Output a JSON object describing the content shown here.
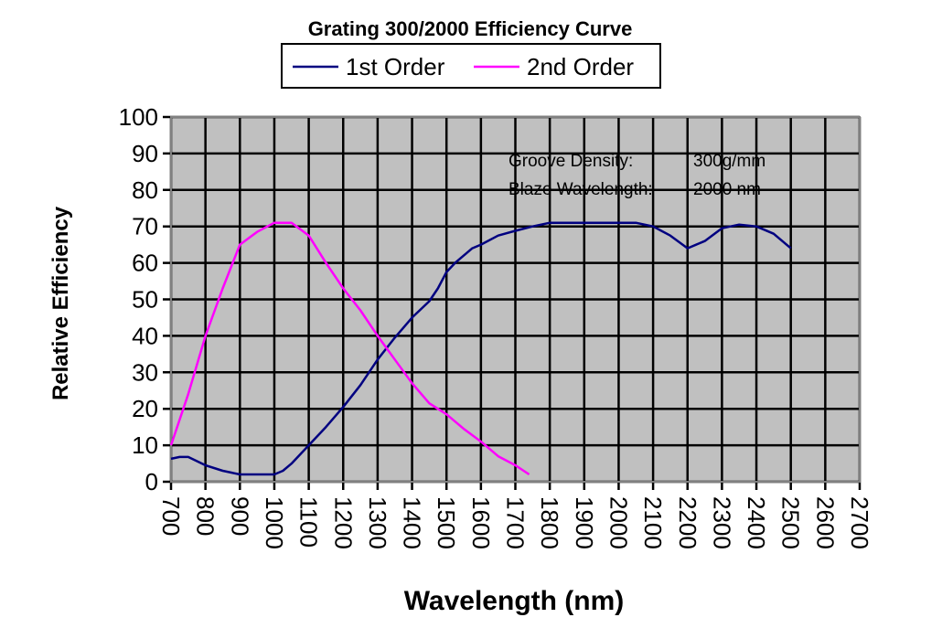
{
  "chart_data": {
    "type": "line",
    "title": "Grating 300/2000 Efficiency Curve",
    "xlabel": "Wavelength (nm)",
    "ylabel": "Relative Efficiency",
    "xlim": [
      700,
      2700
    ],
    "ylim": [
      0,
      100
    ],
    "x_ticks": [
      "700",
      "800",
      "900",
      "1000",
      "1100",
      "1200",
      "1300",
      "1400",
      "1500",
      "1600",
      "1700",
      "1800",
      "1900",
      "2000",
      "2100",
      "2200",
      "2300",
      "2400",
      "2500",
      "2600",
      "2700"
    ],
    "y_ticks": [
      "0",
      "10",
      "20",
      "30",
      "40",
      "50",
      "60",
      "70",
      "80",
      "90",
      "100"
    ],
    "grid": true,
    "plot_background": "#c0c0c0",
    "legend": {
      "placement": "top-center",
      "entries": [
        "1st Order",
        "2nd Order"
      ]
    },
    "annotations": [
      {
        "label": "Groove Density:",
        "value": "300g/mm"
      },
      {
        "label": "Blaze Wavelength:",
        "value": "2000 nm"
      }
    ],
    "series": [
      {
        "name": "1st Order",
        "color": "#000080",
        "x": [
          700,
          725,
          750,
          800,
          850,
          900,
          950,
          1000,
          1025,
          1050,
          1075,
          1100,
          1150,
          1200,
          1250,
          1300,
          1350,
          1400,
          1450,
          1475,
          1500,
          1525,
          1550,
          1575,
          1600,
          1650,
          1700,
          1750,
          1800,
          1850,
          1900,
          1950,
          2000,
          2050,
          2100,
          2150,
          2200,
          2250,
          2300,
          2350,
          2400,
          2450,
          2500
        ],
        "y": [
          6.3,
          6.8,
          6.8,
          4.5,
          3,
          2,
          2,
          2,
          3,
          5,
          7.5,
          10,
          15,
          20.5,
          26.5,
          33.5,
          39.5,
          45,
          49.5,
          53,
          57.5,
          60,
          62,
          64,
          65,
          67.5,
          68.8,
          70,
          71,
          71,
          71,
          71,
          71,
          71,
          70,
          67.5,
          64,
          66,
          69.5,
          70.5,
          70,
          68,
          64
        ]
      },
      {
        "name": "2nd Order",
        "color": "#ff00ff",
        "x": [
          700,
          750,
          800,
          850,
          900,
          950,
          1000,
          1025,
          1050,
          1100,
          1150,
          1200,
          1250,
          1300,
          1350,
          1400,
          1450,
          1500,
          1550,
          1600,
          1650,
          1700,
          1740
        ],
        "y": [
          10,
          24,
          40,
          53,
          65,
          68.5,
          71,
          71,
          71,
          67.5,
          60,
          53,
          47,
          40,
          33.5,
          27,
          21.5,
          18.5,
          14.5,
          11,
          7,
          4.5,
          2
        ]
      }
    ]
  }
}
